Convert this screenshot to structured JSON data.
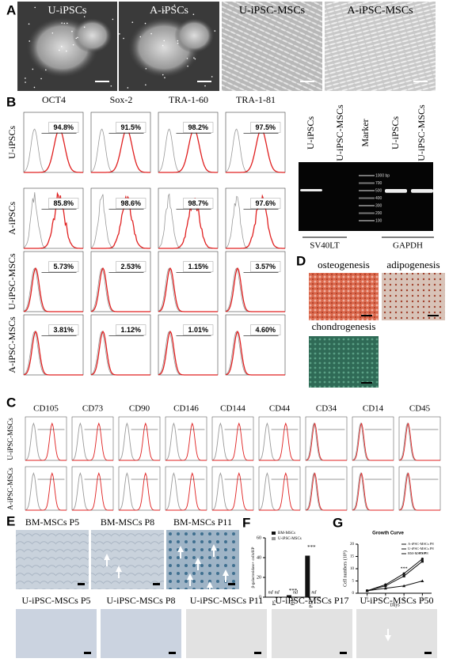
{
  "panel_a": {
    "letter": "A",
    "images": [
      "U-iPSCs",
      "A-iPSCs",
      "U-iPSC-MSCs",
      "A-iPSC-MSCs"
    ]
  },
  "panel_b": {
    "letter": "B",
    "markers": [
      "OCT4",
      "Sox-2",
      "TRA-1-60",
      "TRA-1-81"
    ],
    "rows": [
      "U-iPSCs",
      "A-iPSCs",
      "U-iPSC-MSCs",
      "A-iPSC-MSCs"
    ],
    "percents": [
      [
        "94.8%",
        "91.5%",
        "98.2%",
        "97.5%"
      ],
      [
        "85.8%",
        "98.6%",
        "98.7%",
        "97.6%"
      ],
      [
        "5.73%",
        "2.53%",
        "1.15%",
        "3.57%"
      ],
      [
        "3.81%",
        "1.12%",
        "1.01%",
        "4.60%"
      ]
    ],
    "gel": {
      "lanes": [
        "U-iPSCs",
        "U-iPSC-MSCs",
        "Marker",
        "U-iPSCs",
        "U-iPSC-MSCs"
      ],
      "ladder": [
        "1000 bp",
        "700",
        "500",
        "400",
        "300",
        "200",
        "100"
      ],
      "genes": [
        "SV40LT",
        "GAPDH"
      ]
    }
  },
  "panel_c": {
    "letter": "C",
    "markers": [
      "CD105",
      "CD73",
      "CD90",
      "CD146",
      "CD144",
      "CD44",
      "CD34",
      "CD14",
      "CD45"
    ],
    "rows": [
      "U-iPSC-MSCs",
      "A-iPSC-MSCs"
    ]
  },
  "panel_d": {
    "letter": "D",
    "images": [
      "osteogenesis",
      "adipogenesis",
      "chondrogenesis"
    ]
  },
  "panel_e": {
    "letter": "E",
    "top": [
      "BM-MSCs P5",
      "BM-MSCs P8",
      "BM-MSCs P11"
    ],
    "bottom": [
      "U-iPSC-MSCs P5",
      "U-iPSC-MSCs P8",
      "U-iPSC-MSCs P11",
      "U-iPSC-MSCs P17",
      "U-iPSC-MSCs P50"
    ]
  },
  "panel_f": {
    "letter": "F",
    "type": "bar",
    "ylabel": "β-galactosidase+ cells/HP",
    "categories": [
      "P5",
      "P8",
      "P11"
    ],
    "series": [
      {
        "name": "BM-MSCs",
        "color": "#111111",
        "values": [
          null,
          2,
          42
        ]
      },
      {
        "name": "U-iPSC-MSCs",
        "color": "#999999",
        "values": [
          null,
          null,
          null
        ]
      }
    ],
    "ylim": [
      0,
      60
    ],
    "yticks": [
      0,
      20,
      40,
      60
    ],
    "nd": "nd",
    "significance": "***"
  },
  "panel_g": {
    "letter": "G",
    "type": "line",
    "title": "Growth Curve",
    "xlabel": "Days",
    "ylabel": "Cell numbers (10⁵)",
    "x": [
      0,
      1,
      2,
      3
    ],
    "series": [
      {
        "name": "A-iPSC-MSCs P8",
        "color": "#111111",
        "values": [
          1,
          3.5,
          8,
          14
        ]
      },
      {
        "name": "U-iPSC-MSCs P8",
        "color": "#111111",
        "values": [
          1,
          3,
          7,
          13
        ]
      },
      {
        "name": "BM-MSCs P8",
        "color": "#111111",
        "values": [
          1,
          2,
          3,
          5
        ]
      }
    ],
    "xlim": [
      -0.5,
      3.5
    ],
    "xticks": [
      0,
      1,
      2,
      3
    ],
    "ylim": [
      0,
      20
    ],
    "yticks": [
      0,
      5,
      10,
      15,
      20
    ],
    "significance": "***"
  }
}
